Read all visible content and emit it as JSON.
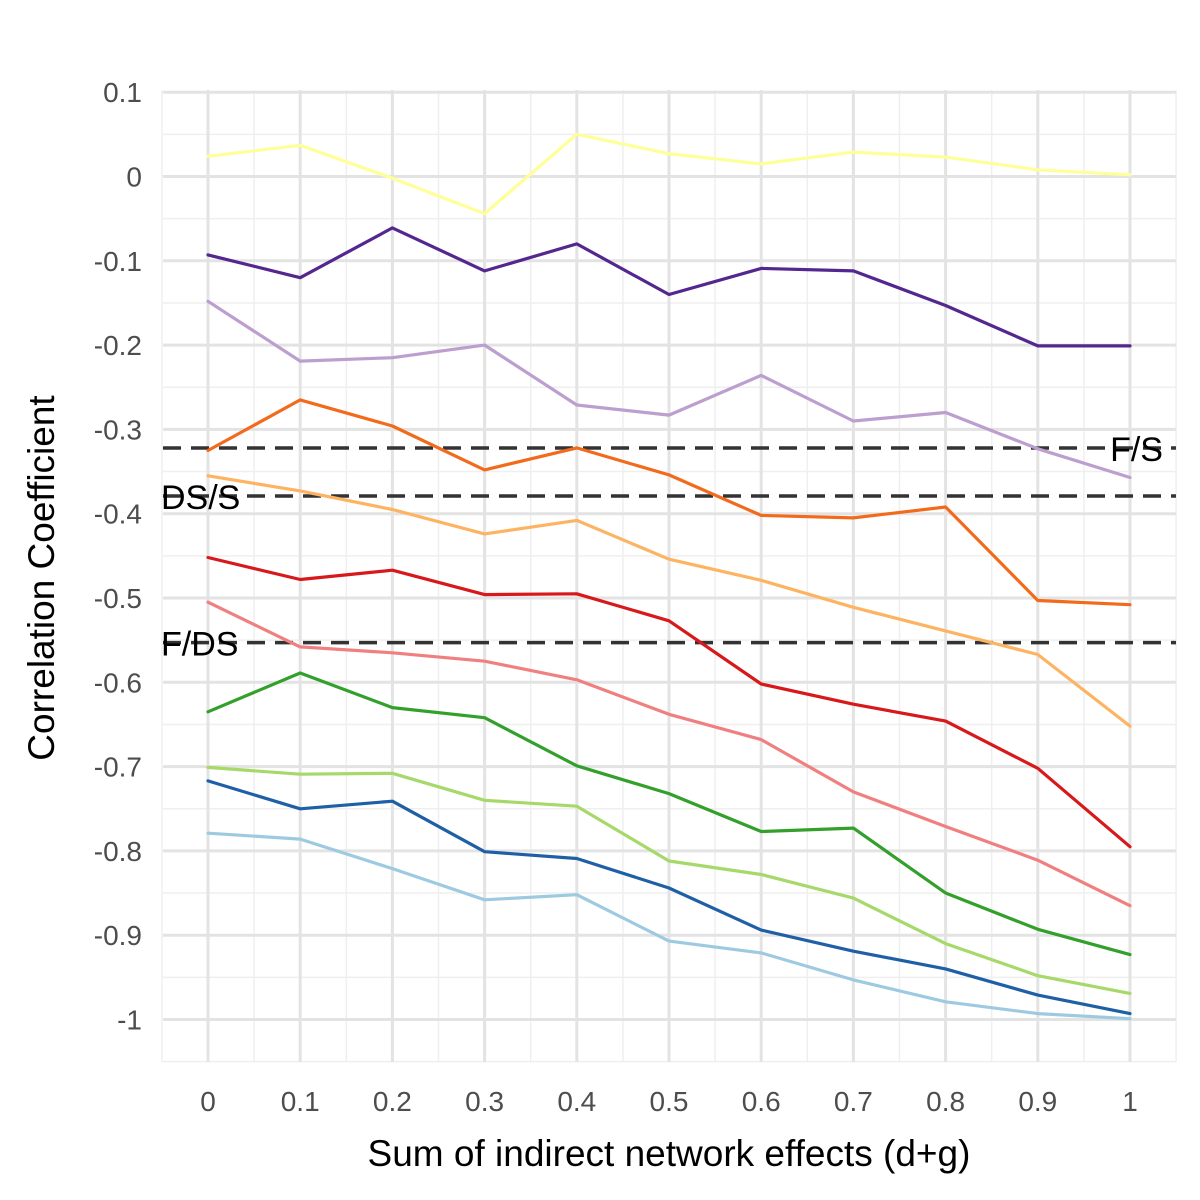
{
  "chart_data": {
    "type": "line",
    "xlabel": "Sum of indirect network effects (d+g)",
    "ylabel": "Correlation Coefficient",
    "xlim": [
      -0.05,
      1.05
    ],
    "ylim": [
      -1.05,
      0.1
    ],
    "x_ticks": [
      "0",
      "0.1",
      "0.2",
      "0.3",
      "0.4",
      "0.5",
      "0.6",
      "0.7",
      "0.8",
      "0.9",
      "1"
    ],
    "y_ticks": [
      "0.1",
      "0",
      "-0.1",
      "-0.2",
      "-0.3",
      "-0.4",
      "-0.5",
      "-0.6",
      "-0.7",
      "-0.8",
      "-0.9",
      "-1"
    ],
    "grid": true,
    "legend": "none",
    "x": [
      0,
      0.1,
      0.2,
      0.3,
      0.4,
      0.5,
      0.6,
      0.7,
      0.8,
      0.9,
      1.0
    ],
    "series": [
      {
        "color": "#ffff99",
        "values": [
          0.024,
          0.037,
          -0.002,
          -0.044,
          0.05,
          0.027,
          0.015,
          0.029,
          0.023,
          0.008,
          0.002
        ]
      },
      {
        "color": "#54278f",
        "values": [
          -0.093,
          -0.12,
          -0.061,
          -0.112,
          -0.08,
          -0.14,
          -0.109,
          -0.112,
          -0.153,
          -0.201,
          -0.201
        ]
      },
      {
        "color": "#bc9ecf",
        "values": [
          -0.148,
          -0.219,
          -0.215,
          -0.2,
          -0.271,
          -0.283,
          -0.236,
          -0.29,
          -0.28,
          -0.323,
          -0.357
        ]
      },
      {
        "color": "#f26b1d",
        "values": [
          -0.325,
          -0.265,
          -0.296,
          -0.348,
          -0.322,
          -0.354,
          -0.402,
          -0.405,
          -0.392,
          -0.503,
          -0.508
        ]
      },
      {
        "color": "#fdb462",
        "values": [
          -0.355,
          -0.373,
          -0.395,
          -0.424,
          -0.408,
          -0.454,
          -0.479,
          -0.511,
          -0.539,
          -0.567,
          -0.652
        ]
      },
      {
        "color": "#d7191c",
        "values": [
          -0.452,
          -0.478,
          -0.467,
          -0.496,
          -0.495,
          -0.527,
          -0.602,
          -0.626,
          -0.646,
          -0.702,
          -0.795
        ]
      },
      {
        "color": "#f08080",
        "values": [
          -0.505,
          -0.558,
          -0.565,
          -0.575,
          -0.597,
          -0.638,
          -0.668,
          -0.73,
          -0.771,
          -0.811,
          -0.865
        ]
      },
      {
        "color": "#33a02c",
        "values": [
          -0.635,
          -0.589,
          -0.63,
          -0.642,
          -0.699,
          -0.732,
          -0.777,
          -0.773,
          -0.85,
          -0.893,
          -0.923
        ]
      },
      {
        "color": "#a6d96a",
        "values": [
          -0.701,
          -0.709,
          -0.708,
          -0.74,
          -0.747,
          -0.812,
          -0.828,
          -0.856,
          -0.91,
          -0.948,
          -0.969
        ]
      },
      {
        "color": "#1f5fa6",
        "values": [
          -0.717,
          -0.75,
          -0.741,
          -0.801,
          -0.809,
          -0.844,
          -0.894,
          -0.919,
          -0.94,
          -0.971,
          -0.993
        ]
      },
      {
        "color": "#9ecae1",
        "values": [
          -0.779,
          -0.786,
          -0.821,
          -0.858,
          -0.852,
          -0.907,
          -0.921,
          -0.953,
          -0.979,
          -0.993,
          -0.999
        ]
      }
    ],
    "reference_lines": [
      {
        "label": "F/S",
        "y": -0.322,
        "label_anchor": "end"
      },
      {
        "label": "DS/S",
        "y": -0.379,
        "label_anchor": "start"
      },
      {
        "label": "F/DS",
        "y": -0.553,
        "label_anchor": "start"
      }
    ]
  }
}
